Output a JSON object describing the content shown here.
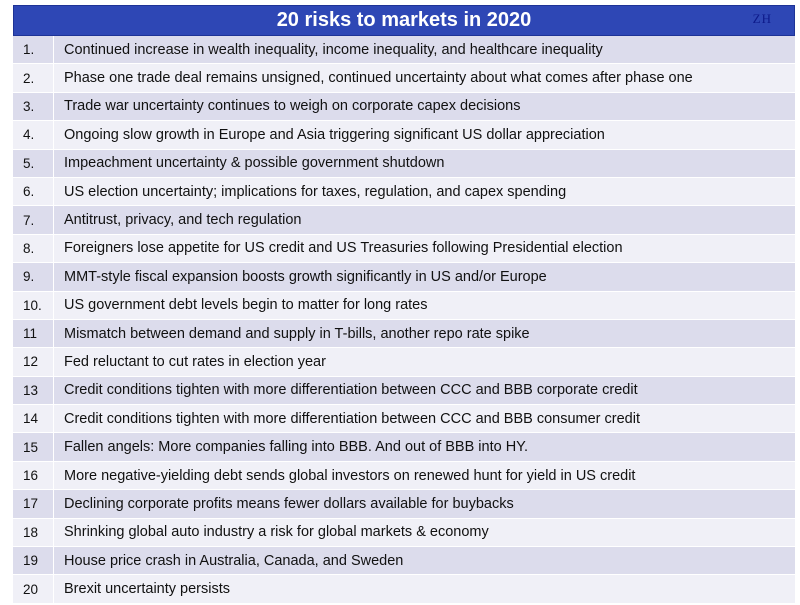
{
  "header": {
    "title": "20 risks to markets in 2020",
    "watermark": "ZH"
  },
  "rows": [
    {
      "num": "1.",
      "text": "Continued increase in wealth inequality, income inequality, and healthcare inequality"
    },
    {
      "num": "2.",
      "text": "Phase one trade deal remains unsigned, continued uncertainty about what comes after phase one"
    },
    {
      "num": "3.",
      "text": "Trade war uncertainty continues to weigh on corporate capex decisions"
    },
    {
      "num": "4.",
      "text": "Ongoing slow growth in Europe and Asia triggering significant US dollar appreciation"
    },
    {
      "num": "5.",
      "text": "Impeachment uncertainty & possible government shutdown"
    },
    {
      "num": "6.",
      "text": "US election uncertainty; implications for taxes, regulation, and capex spending"
    },
    {
      "num": "7.",
      "text": "Antitrust, privacy, and tech regulation"
    },
    {
      "num": "8.",
      "text": "Foreigners lose appetite for US credit and US Treasuries following Presidential election"
    },
    {
      "num": "9.",
      "text": "MMT-style fiscal expansion boosts growth significantly in US and/or Europe"
    },
    {
      "num": "10.",
      "text": "US government debt levels begin to matter for long rates"
    },
    {
      "num": "11",
      "text": "Mismatch between demand and supply in T-bills, another repo rate spike"
    },
    {
      "num": "12",
      "text": "Fed reluctant to cut rates in election year"
    },
    {
      "num": "13",
      "text": "Credit conditions tighten with more differentiation between CCC and BBB corporate credit"
    },
    {
      "num": "14",
      "text": "Credit conditions tighten with more differentiation between CCC and BBB consumer credit"
    },
    {
      "num": "15",
      "text": "Fallen angels: More companies falling into BBB. And out of BBB into HY."
    },
    {
      "num": "16",
      "text": "More negative-yielding debt sends global investors on renewed hunt for yield in US credit"
    },
    {
      "num": "17",
      "text": "Declining corporate profits means fewer dollars available for buybacks"
    },
    {
      "num": "18",
      "text": "Shrinking global auto industry a risk for global markets & economy"
    },
    {
      "num": "19",
      "text": "House price crash in Australia, Canada, and Sweden"
    },
    {
      "num": "20",
      "text": "Brexit uncertainty persists"
    }
  ]
}
